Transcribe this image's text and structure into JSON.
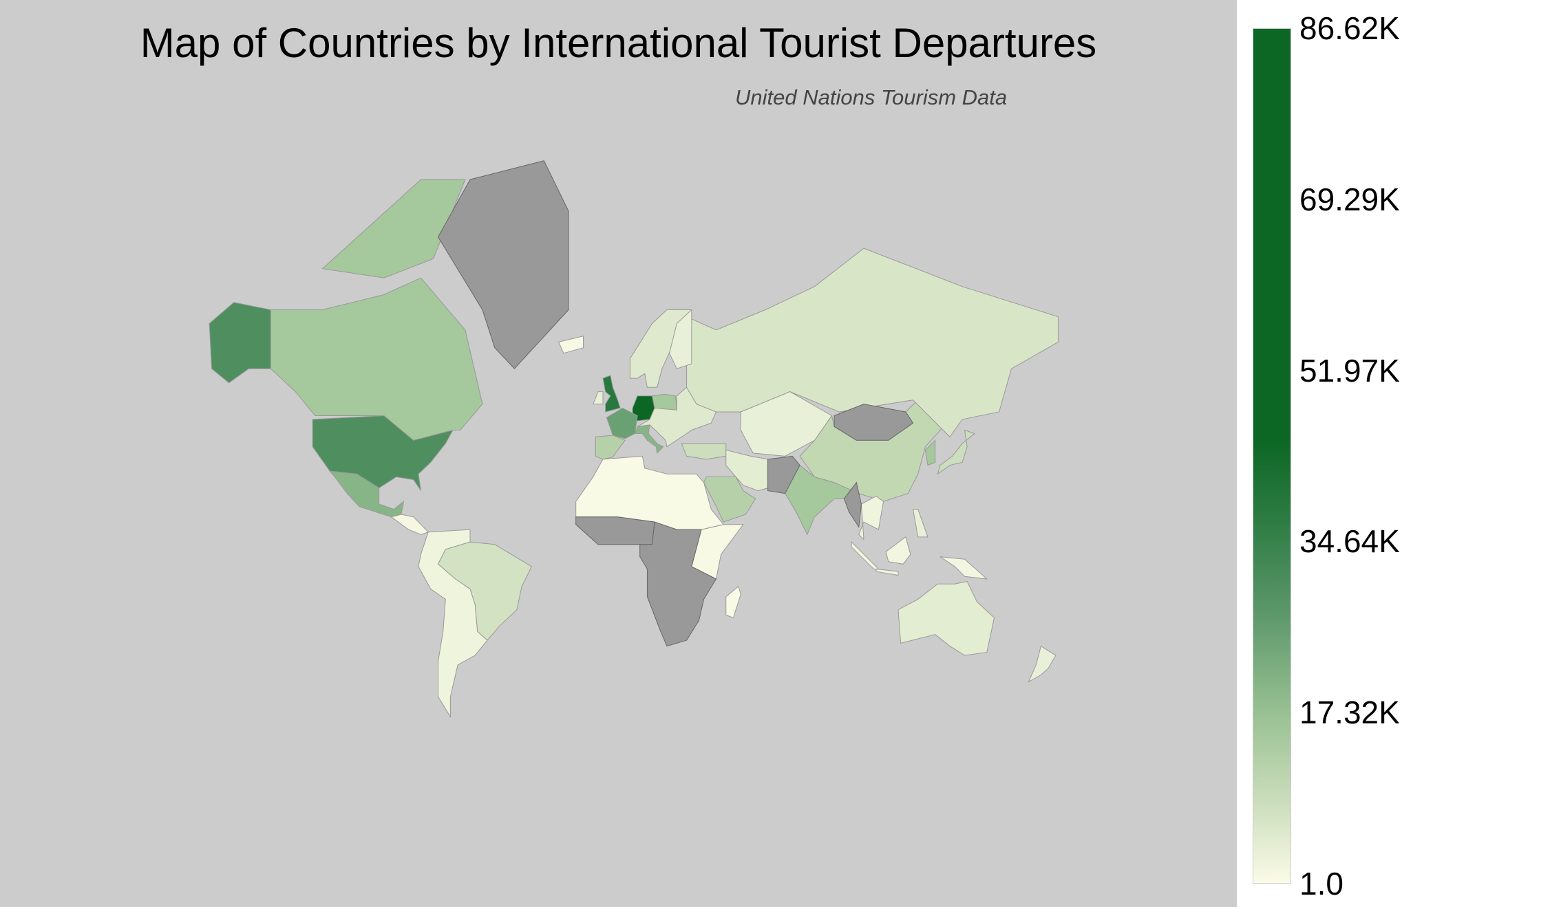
{
  "chart_data": {
    "type": "choropleth",
    "title": "Map of Countries by International Tourist Departures",
    "subtitle": "United Nations Tourism Data",
    "colorbar": {
      "ticks": [
        "1.0",
        "17.32K",
        "34.64K",
        "51.97K",
        "69.29K",
        "86.62K"
      ],
      "range": [
        1.0,
        86620
      ],
      "colors": [
        "#fbfbe8",
        "#c8dcb9",
        "#98c093",
        "#5a9668",
        "#2f7d45",
        "#0c6624",
        "#0c6624"
      ],
      "color_stops": [
        0,
        0.1,
        0.2,
        0.32,
        0.42,
        0.52,
        1
      ],
      "no_data_color": "#999999"
    },
    "countries": [
      {
        "name": "Germany",
        "value": 86620
      },
      {
        "name": "United Kingdom",
        "value": 38000
      },
      {
        "name": "United States",
        "value": 30000
      },
      {
        "name": "France",
        "value": 25000
      },
      {
        "name": "Italy",
        "value": 20000
      },
      {
        "name": "Mexico",
        "value": 20000
      },
      {
        "name": "Canada",
        "value": 15000
      },
      {
        "name": "Poland",
        "value": 15000
      },
      {
        "name": "India",
        "value": 15000
      },
      {
        "name": "South Korea",
        "value": 15000
      },
      {
        "name": "Spain",
        "value": 12000
      },
      {
        "name": "Saudi Arabia",
        "value": 12000
      },
      {
        "name": "China",
        "value": 10000
      },
      {
        "name": "Japan",
        "value": 8000
      },
      {
        "name": "Turkey",
        "value": 8000
      },
      {
        "name": "Brazil",
        "value": 7000
      },
      {
        "name": "Russia",
        "value": 6000
      },
      {
        "name": "Eastern Europe",
        "value": 5000
      },
      {
        "name": "Scandinavia",
        "value": 5000
      },
      {
        "name": "Australia",
        "value": 4000
      },
      {
        "name": "Iran",
        "value": 4000
      },
      {
        "name": "Kazakhstan",
        "value": 3000
      },
      {
        "name": "Finland",
        "value": 3000
      },
      {
        "name": "Ireland",
        "value": 3000
      },
      {
        "name": "New Zealand",
        "value": 3000
      },
      {
        "name": "Philippines",
        "value": 3000
      },
      {
        "name": "Andean South America",
        "value": 2000
      },
      {
        "name": "Southeast Asia",
        "value": 2000
      },
      {
        "name": "Indonesia",
        "value": 1500
      },
      {
        "name": "Central America",
        "value": 1000
      },
      {
        "name": "Iceland",
        "value": 500
      },
      {
        "name": "East Africa",
        "value": 500
      },
      {
        "name": "North Africa",
        "value": 300
      },
      {
        "name": "Madagascar",
        "value": 300
      },
      {
        "name": "Greenland",
        "value": null
      },
      {
        "name": "Mongolia",
        "value": null
      },
      {
        "name": "Afghanistan",
        "value": null
      },
      {
        "name": "Myanmar",
        "value": null
      },
      {
        "name": "West Africa",
        "value": null
      },
      {
        "name": "Central and Southern Africa",
        "value": null
      }
    ]
  }
}
